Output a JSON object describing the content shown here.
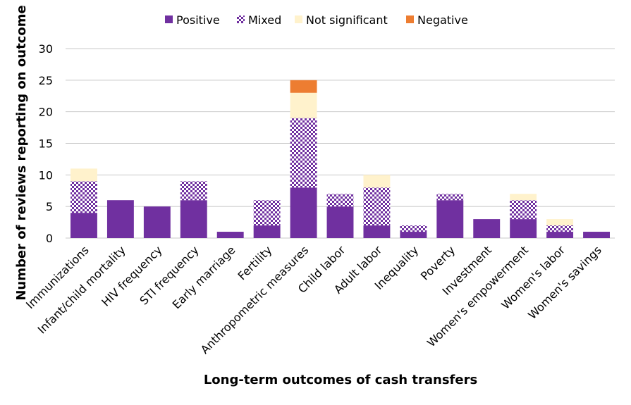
{
  "chart_data": {
    "type": "bar",
    "stacked": true,
    "categories": [
      "Immunizations",
      "Infant/child mortality",
      "HIV frequency",
      "STI frequency",
      "Early marriage",
      "Fertility",
      "Anthropometric measures",
      "Child labor",
      "Adult labor",
      "Inequality",
      "Poverty",
      "Investment",
      "Women's empowerment",
      "Women's labor",
      "Women's savings"
    ],
    "series": [
      {
        "name": "Positive",
        "values": [
          4,
          6,
          5,
          6,
          1,
          2,
          8,
          5,
          2,
          1,
          6,
          3,
          3,
          1,
          1
        ],
        "color": "#7030A0",
        "pattern": "solid"
      },
      {
        "name": "Mixed",
        "values": [
          5,
          0,
          0,
          3,
          0,
          4,
          11,
          2,
          6,
          1,
          1,
          0,
          3,
          1,
          0
        ],
        "color": "#7030A0",
        "pattern": "checker"
      },
      {
        "name": "Not significant",
        "values": [
          2,
          0,
          0,
          0,
          0,
          0,
          4,
          0,
          2,
          0,
          0,
          0,
          1,
          1,
          0
        ],
        "color": "#FFF2CC",
        "pattern": "solid"
      },
      {
        "name": "Negative",
        "values": [
          0,
          0,
          0,
          0,
          0,
          0,
          2,
          0,
          0,
          0,
          0,
          0,
          0,
          0,
          0
        ],
        "color": "#ED7D31",
        "pattern": "solid"
      }
    ],
    "xlabel": "Long-term outcomes of cash transfers",
    "ylabel": "Number of reviews reporting on outcome",
    "ylim": [
      0,
      30
    ],
    "yticks": [
      0,
      5,
      10,
      15,
      20,
      25,
      30
    ],
    "grid": true,
    "legend_position": "top"
  }
}
